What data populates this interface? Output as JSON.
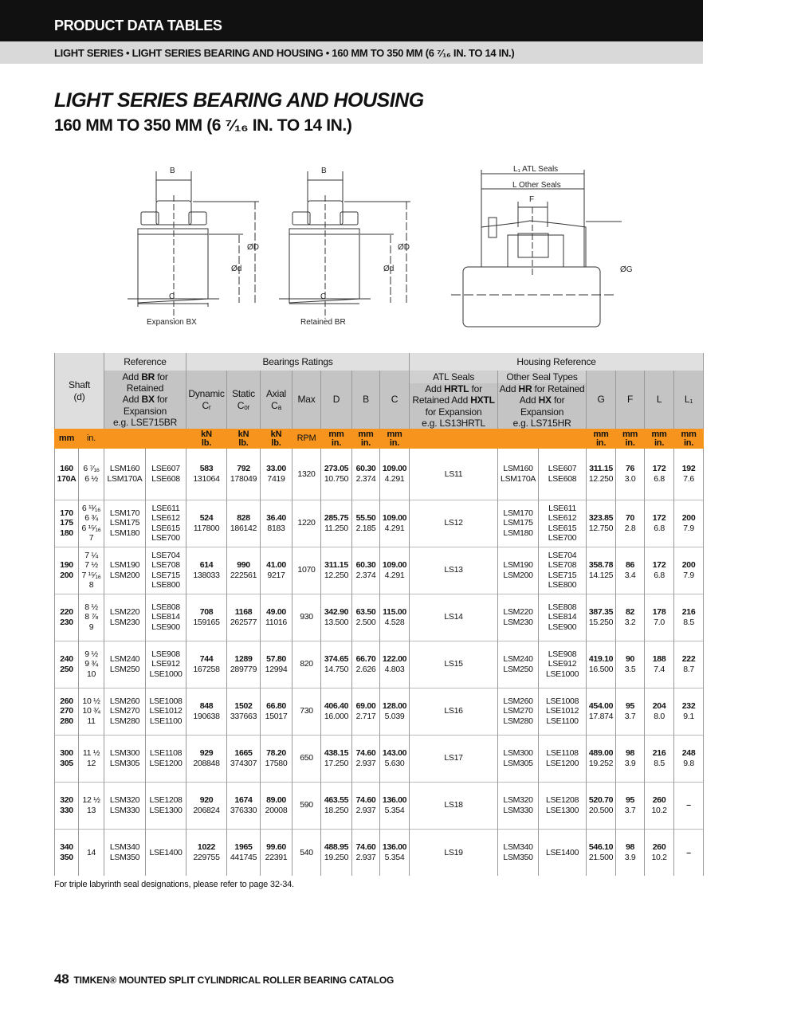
{
  "header": {
    "section": "PRODUCT DATA TABLES",
    "breadcrumb": "LIGHT SERIES • LIGHT SERIES BEARING AND HOUSING • 160 MM TO 350 MM (6 ⁷⁄₁₆ IN. TO 14 IN.)"
  },
  "title": "LIGHT SERIES BEARING AND HOUSING",
  "subtitle": "160 MM TO 350 MM (6 ⁷⁄₁₆ IN. TO 14 IN.)",
  "diagrams": {
    "expansion": {
      "caption": "Expansion BX",
      "B": "B",
      "C": "C",
      "D": "ØD",
      "d": "Ød"
    },
    "retained": {
      "caption": "Retained  BR",
      "B": "B",
      "C": "C",
      "D": "ØD",
      "d": "Ød"
    },
    "housing": {
      "L1": "L₁ ATL Seals",
      "L": "L Other Seals",
      "F": "F",
      "G": "ØG"
    }
  },
  "table": {
    "groups": {
      "shaft": "Shaft\n(d)",
      "reference": "Reference",
      "ratings": "Bearings Ratings",
      "housing": "Housing Reference"
    },
    "reference_desc": {
      "a": "Add ",
      "a_b": "BR",
      "b": " for\nRetained\nAdd ",
      "b_b": "BX",
      "c": " for\nExpansion\ne.g. LSE715BR"
    },
    "cols": {
      "dynamic": "Dynamic\nCᵣ",
      "static": "Static\nCₒᵣ",
      "axial": "Axial\nCₐ",
      "max": "Max",
      "D": "D",
      "B": "B",
      "C": "C",
      "G": "G",
      "F": "F",
      "L": "L",
      "L1": "L₁"
    },
    "atl": {
      "title": "ATL Seals",
      "a": "Add ",
      "a_b": "HRTL",
      "b": " for\nRetained Add ",
      "b_b": "HXTL",
      "c": "\nfor Expansion\ne.g. LS13HRTL"
    },
    "other": {
      "title": "Other Seal Types",
      "a": "Add ",
      "a_b": "HR",
      "b": " for Retained\nAdd ",
      "b_b": "HX",
      "c": " for\nExpansion\ne.g. LS715HR"
    },
    "units": {
      "mm": "mm",
      "in": "in.",
      "kn_lb": "kN\nlb.",
      "rpm": "RPM",
      "mm_in": "mm\nin."
    },
    "rows": [
      {
        "mm": "160\n170A",
        "in": "6 ⁷⁄₁₆\n6 ½",
        "lsm": "LSM160\nLSM170A",
        "lse": "LSE607\nLSE608",
        "dyn": "583",
        "dyn_lb": "131064",
        "sta": "792",
        "sta_lb": "178049",
        "ax": "33.00",
        "ax_lb": "7419",
        "rpm": "1320",
        "D": "273.05",
        "D_in": "10.750",
        "B": "60.30",
        "B_in": "2.374",
        "C": "109.00",
        "C_in": "4.291",
        "atl": "LS11",
        "hlsm": "LSM160\nLSM170A",
        "hlse": "LSE607\nLSE608",
        "G": "311.15",
        "G_in": "12.250",
        "F": "76",
        "F_in": "3.0",
        "L": "172",
        "L_in": "6.8",
        "L1": "192",
        "L1_in": "7.6"
      },
      {
        "mm": "170\n175\n180",
        "in": "6 ¹¹⁄₁₆\n6 ¾\n6 ¹⁵⁄₁₆\n7",
        "lsm": "LSM170\nLSM175\nLSM180",
        "lse": "LSE611\nLSE612\nLSE615\nLSE700",
        "dyn": "524",
        "dyn_lb": "117800",
        "sta": "828",
        "sta_lb": "186142",
        "ax": "36.40",
        "ax_lb": "8183",
        "rpm": "1220",
        "D": "285.75",
        "D_in": "11.250",
        "B": "55.50",
        "B_in": "2.185",
        "C": "109.00",
        "C_in": "4.291",
        "atl": "LS12",
        "hlsm": "LSM170\nLSM175\nLSM180",
        "hlse": "LSE611\nLSE612\nLSE615\nLSE700",
        "G": "323.85",
        "G_in": "12.750",
        "F": "70",
        "F_in": "2.8",
        "L": "172",
        "L_in": "6.8",
        "L1": "200",
        "L1_in": "7.9"
      },
      {
        "mm": "190\n200",
        "in": "7 ¼\n7 ½\n7 ¹⁵⁄₁₆\n8",
        "lsm": "LSM190\nLSM200",
        "lse": "LSE704\nLSE708\nLSE715\nLSE800",
        "dyn": "614",
        "dyn_lb": "138033",
        "sta": "990",
        "sta_lb": "222561",
        "ax": "41.00",
        "ax_lb": "9217",
        "rpm": "1070",
        "D": "311.15",
        "D_in": "12.250",
        "B": "60.30",
        "B_in": "2.374",
        "C": "109.00",
        "C_in": "4.291",
        "atl": "LS13",
        "hlsm": "LSM190\nLSM200",
        "hlse": "LSE704\nLSE708\nLSE715\nLSE800",
        "G": "358.78",
        "G_in": "14.125",
        "F": "86",
        "F_in": "3.4",
        "L": "172",
        "L_in": "6.8",
        "L1": "200",
        "L1_in": "7.9"
      },
      {
        "mm": "220\n230",
        "in": "8 ½\n8 ⅞\n9",
        "lsm": "LSM220\nLSM230",
        "lse": "LSE808\nLSE814\nLSE900",
        "dyn": "708",
        "dyn_lb": "159165",
        "sta": "1168",
        "sta_lb": "262577",
        "ax": "49.00",
        "ax_lb": "11016",
        "rpm": "930",
        "D": "342.90",
        "D_in": "13.500",
        "B": "63.50",
        "B_in": "2.500",
        "C": "115.00",
        "C_in": "4.528",
        "atl": "LS14",
        "hlsm": "LSM220\nLSM230",
        "hlse": "LSE808\nLSE814\nLSE900",
        "G": "387.35",
        "G_in": "15.250",
        "F": "82",
        "F_in": "3.2",
        "L": "178",
        "L_in": "7.0",
        "L1": "216",
        "L1_in": "8.5"
      },
      {
        "mm": "240\n250",
        "in": "9 ½\n9 ¾\n10",
        "lsm": "LSM240\nLSM250",
        "lse": "LSE908\nLSE912\nLSE1000",
        "dyn": "744",
        "dyn_lb": "167258",
        "sta": "1289",
        "sta_lb": "289779",
        "ax": "57.80",
        "ax_lb": "12994",
        "rpm": "820",
        "D": "374.65",
        "D_in": "14.750",
        "B": "66.70",
        "B_in": "2.626",
        "C": "122.00",
        "C_in": "4.803",
        "atl": "LS15",
        "hlsm": "LSM240\nLSM250",
        "hlse": "LSE908\nLSE912\nLSE1000",
        "G": "419.10",
        "G_in": "16.500",
        "F": "90",
        "F_in": "3.5",
        "L": "188",
        "L_in": "7.4",
        "L1": "222",
        "L1_in": "8.7"
      },
      {
        "mm": "260\n270\n280",
        "in": "10 ½\n10 ¾\n11",
        "lsm": "LSM260\nLSM270\nLSM280",
        "lse": "LSE1008\nLSE1012\nLSE1100",
        "dyn": "848",
        "dyn_lb": "190638",
        "sta": "1502",
        "sta_lb": "337663",
        "ax": "66.80",
        "ax_lb": "15017",
        "rpm": "730",
        "D": "406.40",
        "D_in": "16.000",
        "B": "69.00",
        "B_in": "2.717",
        "C": "128.00",
        "C_in": "5.039",
        "atl": "LS16",
        "hlsm": "LSM260\nLSM270\nLSM280",
        "hlse": "LSE1008\nLSE1012\nLSE1100",
        "G": "454.00",
        "G_in": "17.874",
        "F": "95",
        "F_in": "3.7",
        "L": "204",
        "L_in": "8.0",
        "L1": "232",
        "L1_in": "9.1"
      },
      {
        "mm": "300\n305",
        "in": "11 ½\n12",
        "lsm": "LSM300\nLSM305",
        "lse": "LSE1108\nLSE1200",
        "dyn": "929",
        "dyn_lb": "208848",
        "sta": "1665",
        "sta_lb": "374307",
        "ax": "78.20",
        "ax_lb": "17580",
        "rpm": "650",
        "D": "438.15",
        "D_in": "17.250",
        "B": "74.60",
        "B_in": "2.937",
        "C": "143.00",
        "C_in": "5.630",
        "atl": "LS17",
        "hlsm": "LSM300\nLSM305",
        "hlse": "LSE1108\nLSE1200",
        "G": "489.00",
        "G_in": "19.252",
        "F": "98",
        "F_in": "3.9",
        "L": "216",
        "L_in": "8.5",
        "L1": "248",
        "L1_in": "9.8"
      },
      {
        "mm": "320\n330",
        "in": "12 ½\n13",
        "lsm": "LSM320\nLSM330",
        "lse": "LSE1208\nLSE1300",
        "dyn": "920",
        "dyn_lb": "206824",
        "sta": "1674",
        "sta_lb": "376330",
        "ax": "89.00",
        "ax_lb": "20008",
        "rpm": "590",
        "D": "463.55",
        "D_in": "18.250",
        "B": "74.60",
        "B_in": "2.937",
        "C": "136.00",
        "C_in": "5.354",
        "atl": "LS18",
        "hlsm": "LSM320\nLSM330",
        "hlse": "LSE1208\nLSE1300",
        "G": "520.70",
        "G_in": "20.500",
        "F": "95",
        "F_in": "3.7",
        "L": "260",
        "L_in": "10.2",
        "L1": "–",
        "L1_in": ""
      },
      {
        "mm": "340\n350",
        "in": "14",
        "lsm": "LSM340\nLSM350",
        "lse": "LSE1400",
        "dyn": "1022",
        "dyn_lb": "229755",
        "sta": "1965",
        "sta_lb": "441745",
        "ax": "99.60",
        "ax_lb": "22391",
        "rpm": "540",
        "D": "488.95",
        "D_in": "19.250",
        "B": "74.60",
        "B_in": "2.937",
        "C": "136.00",
        "C_in": "5.354",
        "atl": "LS19",
        "hlsm": "LSM340\nLSM350",
        "hlse": "LSE1400",
        "G": "546.10",
        "G_in": "21.500",
        "F": "98",
        "F_in": "3.9",
        "L": "260",
        "L_in": "10.2",
        "L1": "–",
        "L1_in": ""
      }
    ]
  },
  "note": "For triple labyrinth seal designations, please refer to page 32-34.",
  "footer": {
    "page": "48",
    "text": "TIMKEN® MOUNTED SPLIT CYLINDRICAL ROLLER BEARING CATALOG"
  },
  "colors": {
    "accent": "#f7941d",
    "header_bar": "#111111",
    "subheader_bar": "#d9d9d9"
  }
}
